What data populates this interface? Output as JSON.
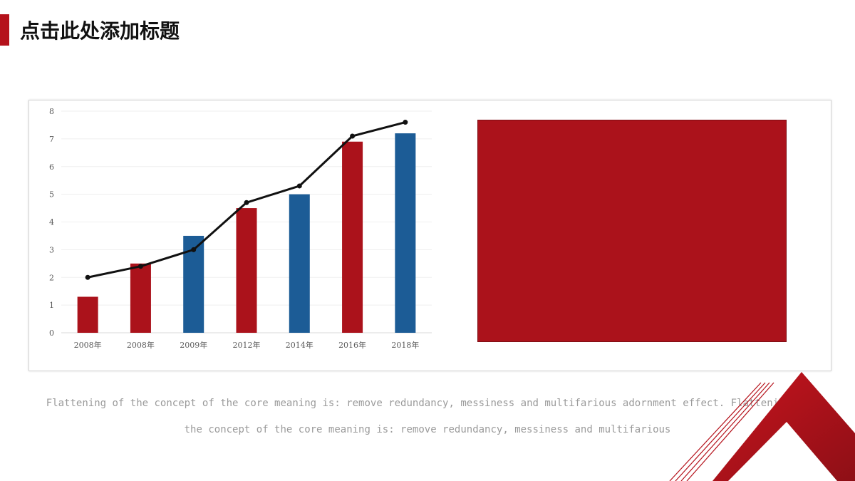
{
  "header": {
    "title": "点击此处添加标题"
  },
  "chart_data": {
    "type": "bar",
    "categories": [
      "2008年",
      "2008年",
      "2009年",
      "2012年",
      "2014年",
      "2016年",
      "2018年"
    ],
    "series": [
      {
        "type": "bar",
        "values": [
          1.3,
          2.5,
          3.5,
          4.5,
          5.0,
          6.9,
          7.2
        ],
        "colors": [
          "#ab121b",
          "#ab121b",
          "#1c5c96",
          "#ab121b",
          "#1c5c96",
          "#ab121b",
          "#1c5c96"
        ]
      },
      {
        "type": "line",
        "values": [
          2.0,
          2.4,
          3.0,
          4.7,
          5.3,
          7.1,
          7.6
        ],
        "color": "#111111"
      }
    ],
    "ylim": [
      0,
      8
    ],
    "yticks": [
      0,
      1,
      2,
      3,
      4,
      5,
      6,
      7,
      8
    ],
    "grid": true,
    "legend": "none"
  },
  "body": {
    "paragraph": "Flattening of the concept of the core meaning is: remove redundancy, messiness and multifarious adornment effect. Flattening of the concept of the core meaning is: remove redundancy, messiness and multifarious"
  },
  "colors": {
    "accent_red": "#b5121b",
    "accent_blue": "#1c5c96"
  }
}
